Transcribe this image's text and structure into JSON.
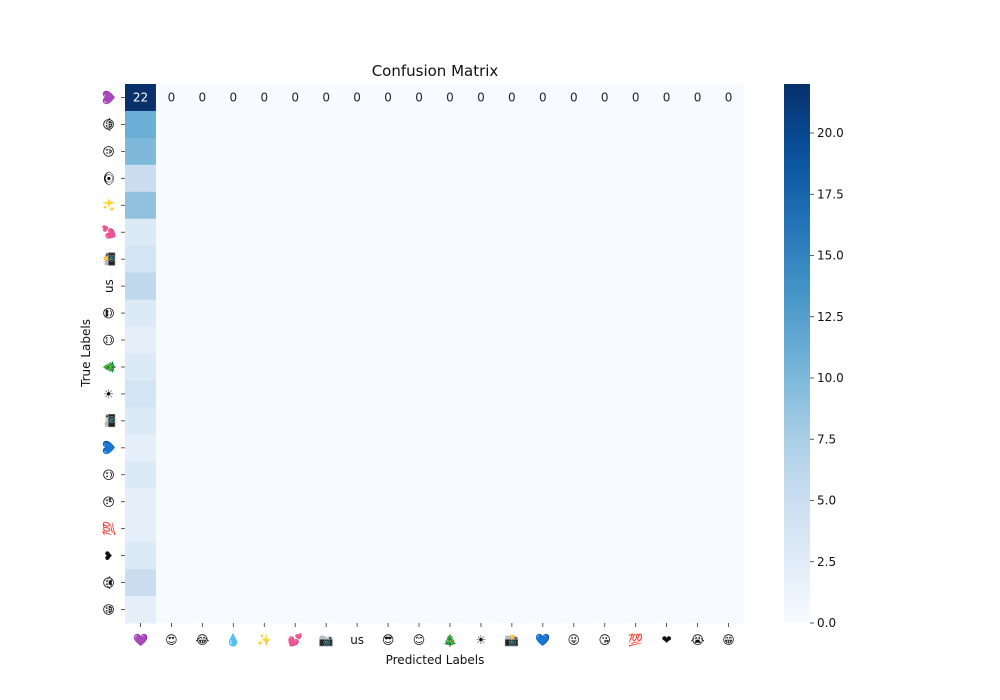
{
  "chart_data": {
    "type": "heatmap",
    "title": "Confusion Matrix",
    "xlabel": "Predicted Labels",
    "ylabel": "True Labels",
    "x_categories": [
      "💜",
      "😍",
      "😂",
      "💧",
      "✨",
      "💕",
      "📷",
      "us",
      "😎",
      "😊",
      "🎄",
      "☀",
      "📸",
      "💙",
      "😜",
      "😘",
      "💯",
      "❤",
      "😭",
      "😁"
    ],
    "y_categories": [
      "💜",
      "😂",
      "😜",
      "👁",
      "✨",
      "💕",
      "📸",
      "us",
      "😎",
      "😊",
      "🎄",
      "☀",
      "📷",
      "💙",
      "😉",
      "😘",
      "💯",
      "❤",
      "😭",
      "😁"
    ],
    "matrix": [
      [
        22,
        0,
        0,
        0,
        0,
        0,
        0,
        0,
        0,
        0,
        0,
        0,
        0,
        0,
        0,
        0,
        0,
        0,
        0,
        0
      ],
      [
        11,
        0,
        0,
        0,
        0,
        0,
        0,
        0,
        0,
        0,
        0,
        0,
        0,
        0,
        0,
        0,
        0,
        0,
        0,
        0
      ],
      [
        10,
        0,
        0,
        0,
        0,
        0,
        0,
        0,
        0,
        0,
        0,
        0,
        0,
        0,
        0,
        0,
        0,
        0,
        0,
        0
      ],
      [
        5,
        0,
        0,
        0,
        0,
        0,
        0,
        0,
        0,
        0,
        0,
        0,
        0,
        0,
        0,
        0,
        0,
        0,
        0,
        0
      ],
      [
        9,
        0,
        0,
        0,
        0,
        0,
        0,
        0,
        0,
        0,
        0,
        0,
        0,
        0,
        0,
        0,
        0,
        0,
        0,
        0
      ],
      [
        3,
        0,
        0,
        0,
        0,
        0,
        0,
        0,
        0,
        0,
        0,
        0,
        0,
        0,
        0,
        0,
        0,
        0,
        0,
        0
      ],
      [
        4,
        0,
        0,
        0,
        0,
        0,
        0,
        0,
        0,
        0,
        0,
        0,
        0,
        0,
        0,
        0,
        0,
        0,
        0,
        0
      ],
      [
        6,
        0,
        0,
        0,
        0,
        0,
        0,
        0,
        0,
        0,
        0,
        0,
        0,
        0,
        0,
        0,
        0,
        0,
        0,
        0
      ],
      [
        3,
        0,
        0,
        0,
        0,
        0,
        0,
        0,
        0,
        0,
        0,
        0,
        0,
        0,
        0,
        0,
        0,
        0,
        0,
        0
      ],
      [
        2,
        0,
        0,
        0,
        0,
        0,
        0,
        0,
        0,
        0,
        0,
        0,
        0,
        0,
        0,
        0,
        0,
        0,
        0,
        0
      ],
      [
        3,
        0,
        0,
        0,
        0,
        0,
        0,
        0,
        0,
        0,
        0,
        0,
        0,
        0,
        0,
        0,
        0,
        0,
        0,
        0
      ],
      [
        4,
        0,
        0,
        0,
        0,
        0,
        0,
        0,
        0,
        0,
        0,
        0,
        0,
        0,
        0,
        0,
        0,
        0,
        0,
        0
      ],
      [
        3,
        0,
        0,
        0,
        0,
        0,
        0,
        0,
        0,
        0,
        0,
        0,
        0,
        0,
        0,
        0,
        0,
        0,
        0,
        0
      ],
      [
        2,
        0,
        0,
        0,
        0,
        0,
        0,
        0,
        0,
        0,
        0,
        0,
        0,
        0,
        0,
        0,
        0,
        0,
        0,
        0
      ],
      [
        3,
        0,
        0,
        0,
        0,
        0,
        0,
        0,
        0,
        0,
        0,
        0,
        0,
        0,
        0,
        0,
        0,
        0,
        0,
        0
      ],
      [
        2,
        0,
        0,
        0,
        0,
        0,
        0,
        0,
        0,
        0,
        0,
        0,
        0,
        0,
        0,
        0,
        0,
        0,
        0,
        0
      ],
      [
        2,
        0,
        0,
        0,
        0,
        0,
        0,
        0,
        0,
        0,
        0,
        0,
        0,
        0,
        0,
        0,
        0,
        0,
        0,
        0
      ],
      [
        3,
        0,
        0,
        0,
        0,
        0,
        0,
        0,
        0,
        0,
        0,
        0,
        0,
        0,
        0,
        0,
        0,
        0,
        0,
        0
      ],
      [
        5,
        0,
        0,
        0,
        0,
        0,
        0,
        0,
        0,
        0,
        0,
        0,
        0,
        0,
        0,
        0,
        0,
        0,
        0,
        0
      ],
      [
        2,
        0,
        0,
        0,
        0,
        0,
        0,
        0,
        0,
        0,
        0,
        0,
        0,
        0,
        0,
        0,
        0,
        0,
        0,
        0
      ]
    ],
    "annotated_rows": [
      0
    ],
    "colorbar": {
      "min": 0,
      "max": 22,
      "ticks": [
        0.0,
        2.5,
        5.0,
        7.5,
        10.0,
        12.5,
        15.0,
        17.5,
        20.0
      ],
      "colormap": "Blues"
    }
  }
}
